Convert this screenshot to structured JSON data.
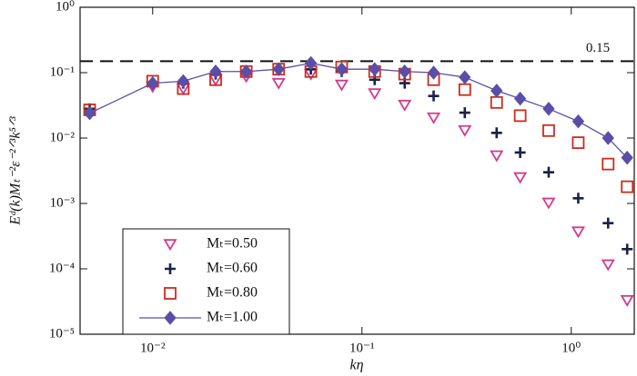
{
  "chart_data": {
    "type": "scatter",
    "xlabel": "kη",
    "ylabel": "Eᵈ(k)Mₜ⁻²ε⁻²ᐟ³k⁵ᐟ³",
    "xscale": "log",
    "yscale": "log",
    "xlim": [
      0.0045,
      2
    ],
    "ylim": [
      1e-05,
      1
    ],
    "xticks": [
      {
        "value": 0.01,
        "label": "10⁻²"
      },
      {
        "value": 0.1,
        "label": "10⁻¹"
      },
      {
        "value": 1,
        "label": "10⁰"
      }
    ],
    "yticks": [
      {
        "value": 1e-05,
        "label": "10⁻⁵"
      },
      {
        "value": 0.0001,
        "label": "10⁻⁴"
      },
      {
        "value": 0.001,
        "label": "10⁻³"
      },
      {
        "value": 0.01,
        "label": "10⁻²"
      },
      {
        "value": 0.1,
        "label": "10⁻¹"
      },
      {
        "value": 1,
        "label": "10⁰"
      }
    ],
    "hline": 0.15,
    "legend": "lower left",
    "x": [
      0.005,
      0.01,
      0.014,
      0.02,
      0.028,
      0.04,
      0.057,
      0.08,
      0.115,
      0.16,
      0.22,
      0.31,
      0.44,
      0.57,
      0.78,
      1.08,
      1.5,
      1.85
    ],
    "series": [
      {
        "name": "Mₜ=0.50",
        "color": "#d23a8e",
        "marker": "triangle-down",
        "values": [
          0.024,
          0.061,
          0.057,
          0.078,
          0.087,
          0.069,
          0.095,
          0.065,
          0.048,
          0.032,
          0.0205,
          0.0131,
          0.0054,
          0.0025,
          0.00102,
          0.00037,
          0.000116,
          3.3e-05
        ]
      },
      {
        "name": "Mₜ=0.60",
        "color": "#1c2147",
        "marker": "plus",
        "values": [
          0.028,
          0.069,
          0.069,
          0.095,
          0.104,
          0.113,
          0.113,
          0.104,
          0.078,
          0.069,
          0.044,
          0.0244,
          0.012,
          0.006,
          0.003,
          0.0012,
          0.0005,
          0.0002
        ]
      },
      {
        "name": "Mₜ=0.80",
        "color": "#cc2b1d",
        "marker": "square",
        "values": [
          0.027,
          0.074,
          0.057,
          0.078,
          0.104,
          0.113,
          0.104,
          0.122,
          0.104,
          0.095,
          0.078,
          0.055,
          0.035,
          0.022,
          0.013,
          0.0085,
          0.004,
          0.0018
        ]
      },
      {
        "name": "Mₜ=1.00",
        "color": "#5a4ea6",
        "marker": "diamond",
        "line": true,
        "values": [
          0.024,
          0.069,
          0.074,
          0.104,
          0.104,
          0.113,
          0.14,
          0.113,
          0.113,
          0.104,
          0.1,
          0.085,
          0.053,
          0.04,
          0.028,
          0.018,
          0.01,
          0.005
        ]
      }
    ]
  }
}
